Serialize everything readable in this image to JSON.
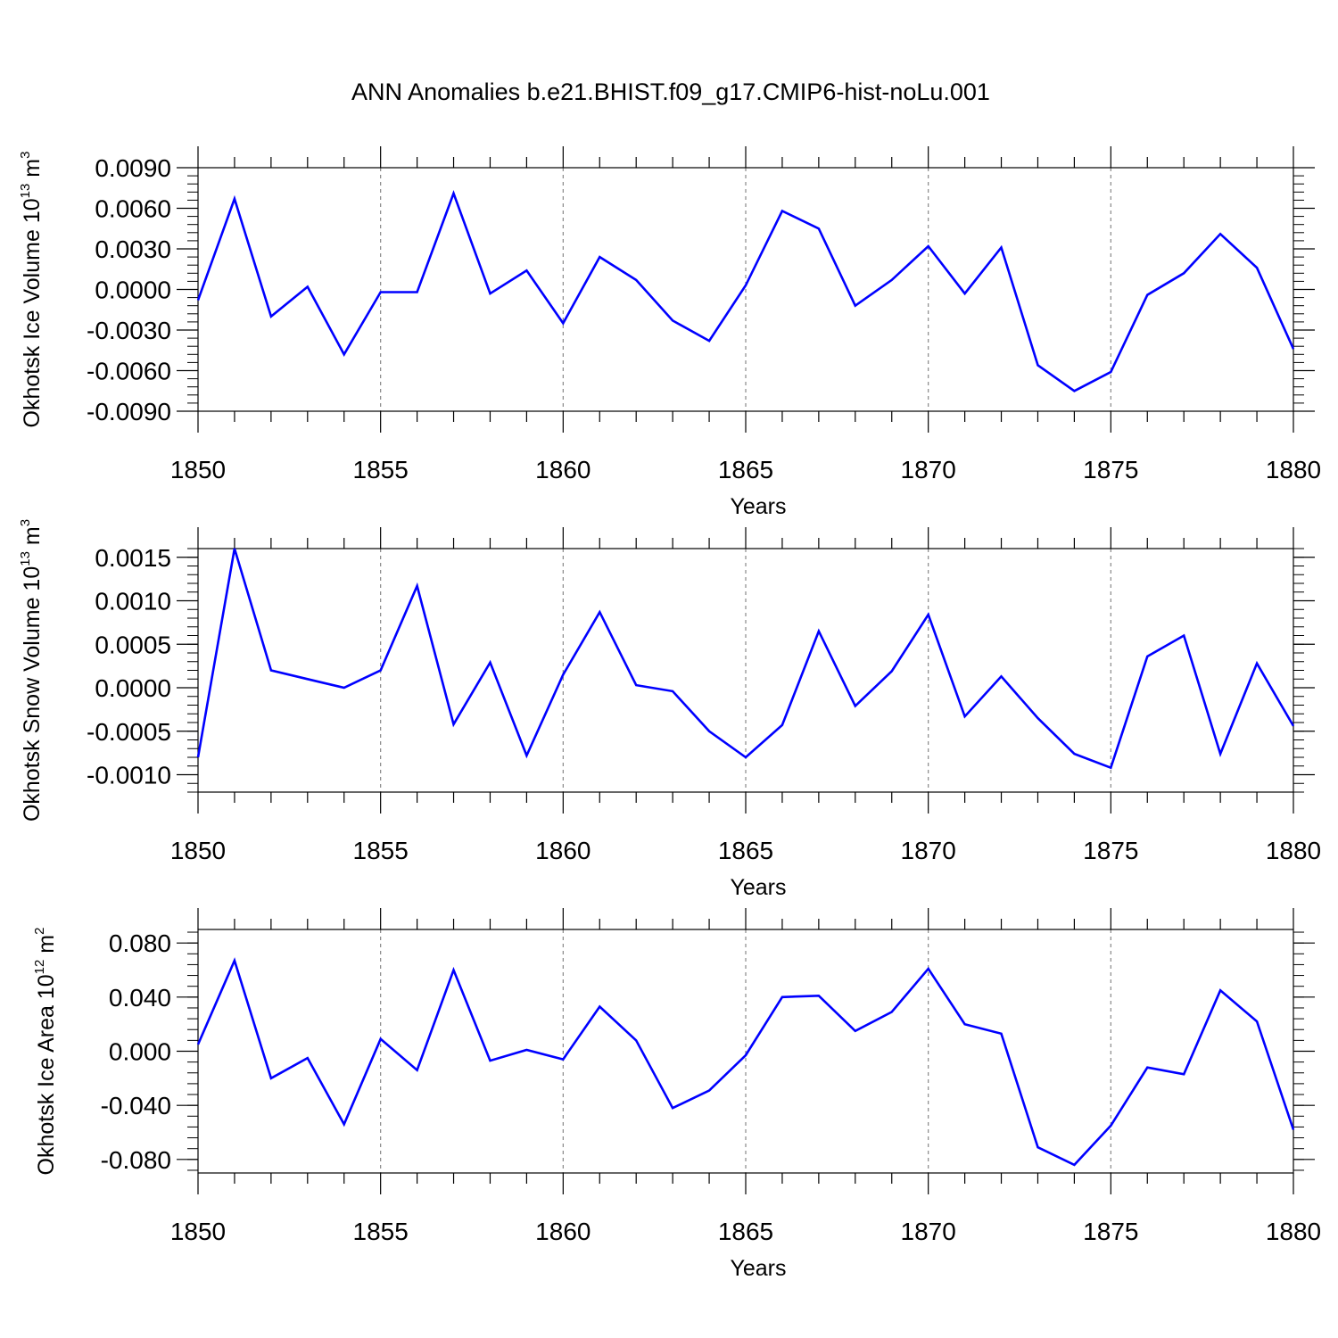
{
  "title": "ANN Anomalies b.e21.BHIST.f09_g17.CMIP6-hist-noLu.001",
  "chart_data": [
    {
      "type": "line",
      "title": "",
      "xlabel": "Years",
      "ylabel": {
        "main": "Okhotsk Ice Volume 10",
        "exp": "13",
        "unit": " m",
        "unit_exp": "3"
      },
      "xlim": [
        1850,
        1880
      ],
      "ylim": [
        -0.009,
        0.009
      ],
      "xticks": [
        "1850",
        "1855",
        "1860",
        "1865",
        "1870",
        "1875",
        "1880"
      ],
      "xtick_values": [
        1850,
        1855,
        1860,
        1865,
        1870,
        1875,
        1880
      ],
      "yticks": [
        "0.0090",
        "0.0060",
        "0.0030",
        "0.0000",
        "-0.0030",
        "-0.0060",
        "-0.0090"
      ],
      "ytick_values": [
        0.009,
        0.006,
        0.003,
        0.0,
        -0.003,
        -0.006,
        -0.009
      ],
      "grid": "vertical dashed at major x ticks",
      "line_color": "#0000ff",
      "x": [
        1850,
        1851,
        1852,
        1853,
        1854,
        1855,
        1856,
        1857,
        1858,
        1859,
        1860,
        1861,
        1862,
        1863,
        1864,
        1865,
        1866,
        1867,
        1868,
        1869,
        1870,
        1871,
        1872,
        1873,
        1874,
        1875,
        1876,
        1877,
        1878,
        1879,
        1880
      ],
      "values": [
        -0.0008,
        0.0067,
        -0.002,
        0.0002,
        -0.0048,
        -0.0002,
        -0.0002,
        0.0071,
        -0.0003,
        0.0014,
        -0.0025,
        0.0024,
        0.0007,
        -0.0023,
        -0.0038,
        0.0003,
        0.0058,
        0.0045,
        -0.0012,
        0.0007,
        0.0032,
        -0.0003,
        0.0031,
        -0.0056,
        -0.0075,
        -0.0061,
        -0.0004,
        0.0012,
        0.0041,
        0.0016,
        -0.0044
      ]
    },
    {
      "type": "line",
      "title": "",
      "xlabel": "Years",
      "ylabel": {
        "main": "Okhotsk Snow Volume 10",
        "exp": "13",
        "unit": " m",
        "unit_exp": "3"
      },
      "xlim": [
        1850,
        1880
      ],
      "ylim": [
        -0.0012,
        0.0016
      ],
      "xticks": [
        "1850",
        "1855",
        "1860",
        "1865",
        "1870",
        "1875",
        "1880"
      ],
      "xtick_values": [
        1850,
        1855,
        1860,
        1865,
        1870,
        1875,
        1880
      ],
      "yticks": [
        "0.0015",
        "0.0010",
        "0.0005",
        "0.0000",
        "-0.0005",
        "-0.0010"
      ],
      "ytick_values": [
        0.0015,
        0.001,
        0.0005,
        0.0,
        -0.0005,
        -0.001
      ],
      "grid": "vertical dashed at major x ticks",
      "line_color": "#0000ff",
      "x": [
        1850,
        1851,
        1852,
        1853,
        1854,
        1855,
        1856,
        1857,
        1858,
        1859,
        1860,
        1861,
        1862,
        1863,
        1864,
        1865,
        1866,
        1867,
        1868,
        1869,
        1870,
        1871,
        1872,
        1873,
        1874,
        1875,
        1876,
        1877,
        1878,
        1879,
        1880
      ],
      "values": [
        -0.0008,
        0.0016,
        0.0002,
        0.0001,
        0.0,
        0.0002,
        0.00117,
        -0.00042,
        0.00029,
        -0.00078,
        0.00015,
        0.00087,
        3e-05,
        -4e-05,
        -0.0005,
        -0.0008,
        -0.00043,
        0.00065,
        -0.00021,
        0.00019,
        0.00084,
        -0.00033,
        0.00013,
        -0.00035,
        -0.00076,
        -0.00092,
        0.00036,
        0.0006,
        -0.00076,
        0.00028,
        -0.00044
      ]
    },
    {
      "type": "line",
      "title": "",
      "xlabel": "Years",
      "ylabel": {
        "main": "Okhotsk Ice Area 10",
        "exp": "12",
        "unit": " m",
        "unit_exp": "2"
      },
      "xlim": [
        1850,
        1880
      ],
      "ylim": [
        -0.09,
        0.09
      ],
      "xticks": [
        "1850",
        "1855",
        "1860",
        "1865",
        "1870",
        "1875",
        "1880"
      ],
      "xtick_values": [
        1850,
        1855,
        1860,
        1865,
        1870,
        1875,
        1880
      ],
      "yticks": [
        "0.080",
        "0.040",
        "0.000",
        "-0.040",
        "-0.080"
      ],
      "ytick_values": [
        0.08,
        0.04,
        0.0,
        -0.04,
        -0.08
      ],
      "grid": "vertical dashed at major x ticks",
      "line_color": "#0000ff",
      "x": [
        1850,
        1851,
        1852,
        1853,
        1854,
        1855,
        1856,
        1857,
        1858,
        1859,
        1860,
        1861,
        1862,
        1863,
        1864,
        1865,
        1866,
        1867,
        1868,
        1869,
        1870,
        1871,
        1872,
        1873,
        1874,
        1875,
        1876,
        1877,
        1878,
        1879,
        1880
      ],
      "values": [
        0.005,
        0.067,
        -0.02,
        -0.005,
        -0.054,
        0.009,
        -0.014,
        0.06,
        -0.007,
        0.001,
        -0.006,
        0.033,
        0.008,
        -0.042,
        -0.029,
        -0.003,
        0.04,
        0.041,
        0.015,
        0.029,
        0.061,
        0.02,
        0.013,
        -0.071,
        -0.084,
        -0.055,
        -0.012,
        -0.017,
        0.045,
        0.022,
        -0.058
      ]
    }
  ]
}
